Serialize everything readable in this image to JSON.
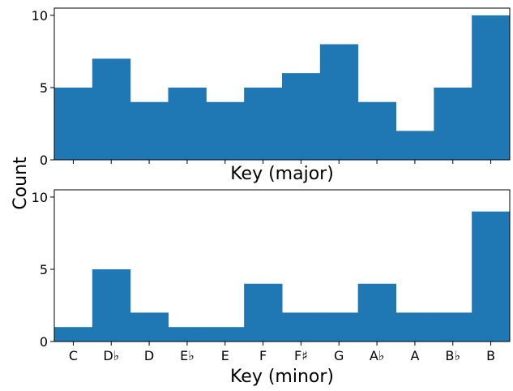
{
  "chart_data": [
    {
      "type": "bar",
      "categories": [
        "C",
        "D♭",
        "D",
        "E♭",
        "E",
        "F",
        "F♯",
        "G",
        "A♭",
        "A",
        "B♭",
        "B"
      ],
      "values": [
        5,
        7,
        4,
        5,
        4,
        5,
        6,
        8,
        4,
        2,
        5,
        10
      ],
      "xlabel": "Key (major)",
      "ylim": [
        0,
        10.5
      ],
      "yticks": [
        0,
        5,
        10
      ],
      "show_xtick_labels": false,
      "bar_color": "#1f77b4",
      "grid": false
    },
    {
      "type": "bar",
      "categories": [
        "C",
        "D♭",
        "D",
        "E♭",
        "E",
        "F",
        "F♯",
        "G",
        "A♭",
        "A",
        "B♭",
        "B"
      ],
      "values": [
        1,
        5,
        2,
        1,
        1,
        4,
        2,
        2,
        4,
        2,
        2,
        9
      ],
      "xlabel": "Key (minor)",
      "ylim": [
        0,
        10.5
      ],
      "yticks": [
        0,
        5,
        10
      ],
      "show_xtick_labels": true,
      "bar_color": "#1f77b4",
      "grid": false
    }
  ],
  "shared_ylabel": "Count"
}
